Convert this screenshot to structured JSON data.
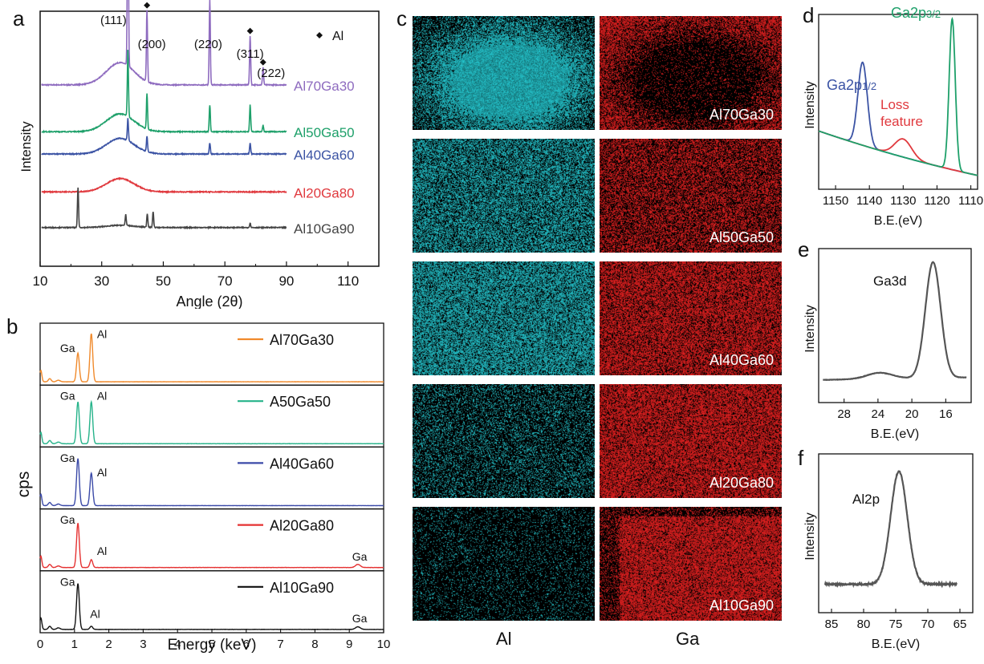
{
  "panels": {
    "a": "a",
    "b": "b",
    "c": "c",
    "d": "d",
    "e": "e",
    "f": "f"
  },
  "chart_data": [
    {
      "panel": "a",
      "type": "line",
      "xlabel": "Angle (2θ)",
      "ylabel": "Intensity",
      "xlim": [
        10,
        120
      ],
      "xticks": [
        "10",
        "30",
        "50",
        "70",
        "90",
        "110"
      ],
      "legend": {
        "marker": "◆",
        "label": "Al"
      },
      "peak_labels": [
        {
          "text": "(111)",
          "x": 38.5
        },
        {
          "text": "(200)",
          "x": 44.7
        },
        {
          "text": "(220)",
          "x": 65.1
        },
        {
          "text": "(311)",
          "x": 78.2
        },
        {
          "text": "(222)",
          "x": 82.4
        }
      ],
      "series": [
        {
          "name": "Al70Ga30",
          "color": "#8e6bbf",
          "baseline": 0.72,
          "hump": 0.1,
          "peaks": [
            [
              38.5,
              0.95
            ],
            [
              44.7,
              0.32
            ],
            [
              65.1,
              0.38
            ],
            [
              78.2,
              0.22
            ],
            [
              82.4,
              0.08
            ]
          ]
        },
        {
          "name": "Al50Ga50",
          "color": "#1ea06a",
          "baseline": 0.51,
          "hump": 0.08,
          "peaks": [
            [
              38.5,
              0.3
            ],
            [
              44.7,
              0.16
            ],
            [
              65.1,
              0.12
            ],
            [
              78.2,
              0.12
            ],
            [
              82.4,
              0.03
            ]
          ]
        },
        {
          "name": "Al40Ga60",
          "color": "#3b53a4",
          "baseline": 0.41,
          "hump": 0.07,
          "peaks": [
            [
              38.5,
              0.1
            ],
            [
              44.7,
              0.07
            ],
            [
              65.1,
              0.05
            ],
            [
              78.2,
              0.05
            ]
          ]
        },
        {
          "name": "Al20Ga80",
          "color": "#e0393e",
          "baseline": 0.24,
          "hump": 0.06,
          "peaks": []
        },
        {
          "name": "Al10Ga90",
          "color": "#444444",
          "baseline": 0.08,
          "hump": 0.01,
          "peaks": [
            [
              22.3,
              0.18
            ],
            [
              37.8,
              0.05
            ],
            [
              44.8,
              0.06
            ],
            [
              46.7,
              0.07
            ],
            [
              78.2,
              0.02
            ]
          ]
        }
      ]
    },
    {
      "panel": "b",
      "type": "line",
      "xlabel": "Energy (keV)",
      "ylabel": "cps",
      "xlim": [
        0,
        10
      ],
      "xticks": [
        "0",
        "1",
        "2",
        "3",
        "4",
        "5",
        "6",
        "7",
        "8",
        "9",
        "10"
      ],
      "series": [
        {
          "name": "Al70Ga30",
          "color": "#f08a2c",
          "ga": 0.55,
          "al": 0.92,
          "ga_high": 0.0,
          "labels": [
            {
              "text": "Ga",
              "x": 0.8,
              "y": 0.63
            },
            {
              "text": "Al",
              "x": 1.8,
              "y": 0.9
            }
          ]
        },
        {
          "name": "A50Ga50",
          "color": "#26b38a",
          "ga": 0.8,
          "al": 0.8,
          "ga_high": 0.0,
          "labels": [
            {
              "text": "Ga",
              "x": 0.8,
              "y": 0.9
            },
            {
              "text": "Al",
              "x": 1.8,
              "y": 0.9
            }
          ]
        },
        {
          "name": "Al40Ga60",
          "color": "#3b4aa8",
          "ga": 0.9,
          "al": 0.62,
          "ga_high": 0.0,
          "labels": [
            {
              "text": "Ga",
              "x": 0.8,
              "y": 0.9
            },
            {
              "text": "Al",
              "x": 1.8,
              "y": 0.62
            }
          ]
        },
        {
          "name": "Al20Ga80",
          "color": "#e53232",
          "ga": 0.85,
          "al": 0.15,
          "ga_high": 0.06,
          "labels": [
            {
              "text": "Ga",
              "x": 0.8,
              "y": 0.9
            },
            {
              "text": "Al",
              "x": 1.8,
              "y": 0.3
            },
            {
              "text": "Ga",
              "x": 9.3,
              "y": 0.2
            }
          ]
        },
        {
          "name": "Al10Ga90",
          "color": "#111111",
          "ga": 0.88,
          "al": 0.06,
          "ga_high": 0.05,
          "labels": [
            {
              "text": "Ga",
              "x": 0.8,
              "y": 0.9
            },
            {
              "text": "Al",
              "x": 1.6,
              "y": 0.28
            },
            {
              "text": "Ga",
              "x": 9.3,
              "y": 0.2
            }
          ]
        }
      ]
    },
    {
      "panel": "d",
      "type": "line",
      "xlabel": "B.E.(eV)",
      "ylabel": "Intensity",
      "xlim": [
        1155,
        1108
      ],
      "xticks": [
        "1150",
        "1140",
        "1130",
        "1120",
        "1110"
      ],
      "annotations": [
        {
          "text": "Ga2p",
          "sub": "1/2",
          "color": "#3b53a4"
        },
        {
          "text": "Ga2p",
          "sub": "3/2",
          "color": "#1ea06a"
        },
        {
          "text": "Loss",
          "color": "#e0393e"
        },
        {
          "text": "feature",
          "color": "#e0393e"
        }
      ],
      "peaks": [
        {
          "x": 1142.0,
          "h": 0.55,
          "w": 1.4,
          "color": "#3b53a4"
        },
        {
          "x": 1130.0,
          "h": 0.12,
          "w": 2.5,
          "color": "#e0393e"
        },
        {
          "x": 1115.5,
          "h": 1.0,
          "w": 0.9,
          "color": "#1ea06a"
        }
      ]
    },
    {
      "panel": "e",
      "type": "line",
      "xlabel": "B.E.(eV)",
      "ylabel": "Intensity",
      "xlim": [
        31,
        13
      ],
      "xticks": [
        "28",
        "24",
        "20",
        "16"
      ],
      "annotation": "Ga3d",
      "peaks": [
        {
          "x": 17.5,
          "h": 0.95,
          "w": 0.9
        },
        {
          "x": 23.8,
          "h": 0.05,
          "w": 1.5
        }
      ]
    },
    {
      "panel": "f",
      "type": "line",
      "xlabel": "B.E.(eV)",
      "ylabel": "Intensity",
      "xlim": [
        87,
        63
      ],
      "xticks": [
        "85",
        "80",
        "75",
        "70",
        "65"
      ],
      "annotation": "Al2p",
      "peaks": [
        {
          "x": 74.5,
          "h": 0.95,
          "w": 1.3
        }
      ]
    }
  ],
  "maps": {
    "rows": [
      "Al70Ga30",
      "Al50Ga50",
      "Al40Ga60",
      "Al20Ga80",
      "Al10Ga90"
    ],
    "al_density": [
      0.85,
      0.6,
      0.7,
      0.3,
      0.15
    ],
    "ga_density": [
      0.6,
      0.55,
      0.7,
      0.75,
      0.8
    ],
    "al_color": "#25c8d0",
    "ga_color": "#ee2222",
    "columns": [
      "Al",
      "Ga"
    ]
  }
}
